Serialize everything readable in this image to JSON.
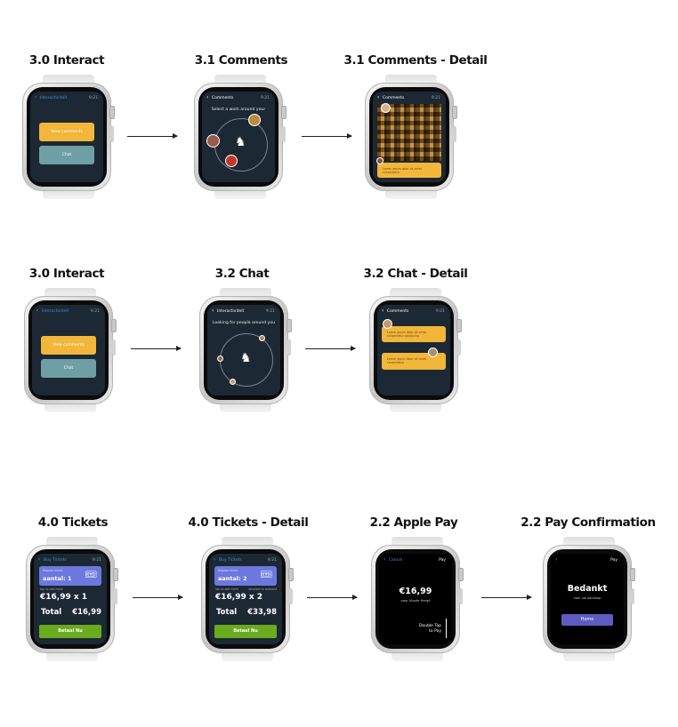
{
  "titles": {
    "r1c1": "3.0 Interact",
    "r1c2": "3.1 Comments",
    "r1c3": "3.1 Comments - Detail",
    "r2c1": "3.0 Interact",
    "r2c2": "3.2 Chat",
    "r2c3": "3.2 Chat - Detail",
    "r3c1": "4.0 Tickets",
    "r3c2": "4.0 Tickets - Detail",
    "r3c3": "2.2 Apple Pay",
    "r3c4": "2.2 Pay Confirmation"
  },
  "common": {
    "time": "9:21",
    "back_glyph": "‹"
  },
  "interact": {
    "header": "Interactiviteit",
    "view_comments": "View comments",
    "chat": "Chat"
  },
  "comments": {
    "header": "Comments",
    "prompt": "Select a work around your",
    "bubble_text": "Lorem ipsum dolor sit amet consectetur"
  },
  "chat": {
    "header": "Interactiviteit",
    "prompt": "Looking for people around you"
  },
  "chat_detail": {
    "header": "Comments",
    "bubble1": "Lorem ipsum dolor sit amet consectetur adipiscing",
    "bubble2": "Lorem ipsum dolor sit amet consectetur"
  },
  "tickets": {
    "header": "Buy Tickets",
    "ticket_label": "Regular ticket",
    "qty1": "aantal: 1",
    "qty2": "aantal: 2",
    "small_left": "tap to add more",
    "small_right": "deselect to subtract",
    "price1": "€16,99 x 1",
    "price2": "€16,99 x 2",
    "total_label": "Total",
    "total1": "€16,99",
    "total2": "€33,98",
    "pay": "Betaal Nu",
    "ticket_icon": "🎟"
  },
  "apple_pay": {
    "cancel": "Cancel",
    "pay_logo": " Pay",
    "amount": "€16,99",
    "to": "naar Musée Hergé",
    "double_tap": "Double Tap\nto Pay"
  },
  "confirmation": {
    "pay_logo": " Pay",
    "title": "Bedankt",
    "subtitle": "voor uw aankoop",
    "home": "Home"
  }
}
